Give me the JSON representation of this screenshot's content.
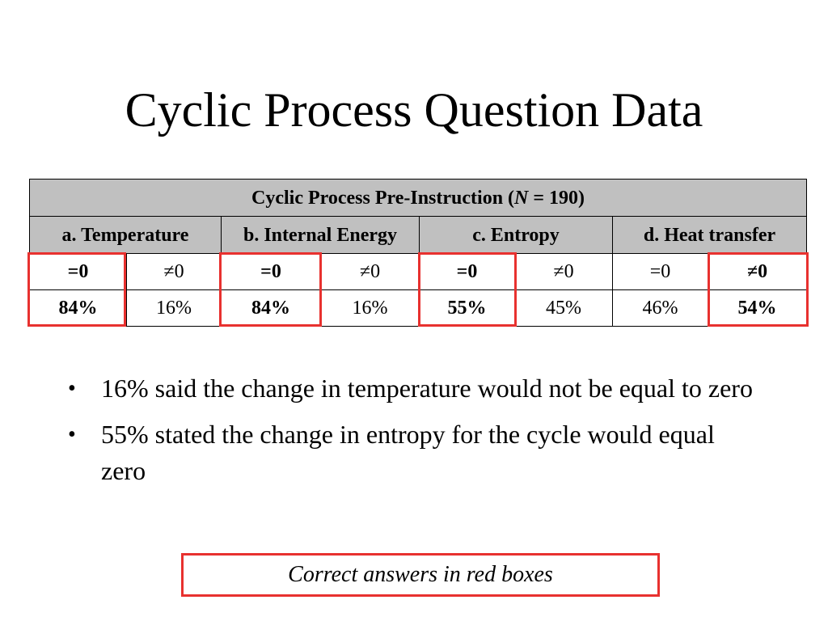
{
  "title": "Cyclic Process Question Data",
  "table": {
    "caption_pre": "Cyclic Process Pre-Instruction (",
    "caption_n": "N",
    "caption_post": " = 190)",
    "categories": [
      "a. Temperature",
      "b. Internal Energy",
      "c. Entropy",
      "d. Heat transfer"
    ],
    "signs": [
      "=0",
      "≠0",
      "=0",
      "≠0",
      "=0",
      "≠0",
      "=0",
      "≠0"
    ],
    "percents": [
      "84%",
      "16%",
      "84%",
      "16%",
      "55%",
      "45%",
      "46%",
      "54%"
    ]
  },
  "bullets": [
    "16% said the change in temperature would not be equal to zero",
    "55% stated the change in entropy for the cycle would equal zero"
  ],
  "bullet_char": "•",
  "note": "Correct answers in red boxes",
  "colors": {
    "highlight_red": "#e8312f",
    "header_gray": "#c0c0c0"
  }
}
